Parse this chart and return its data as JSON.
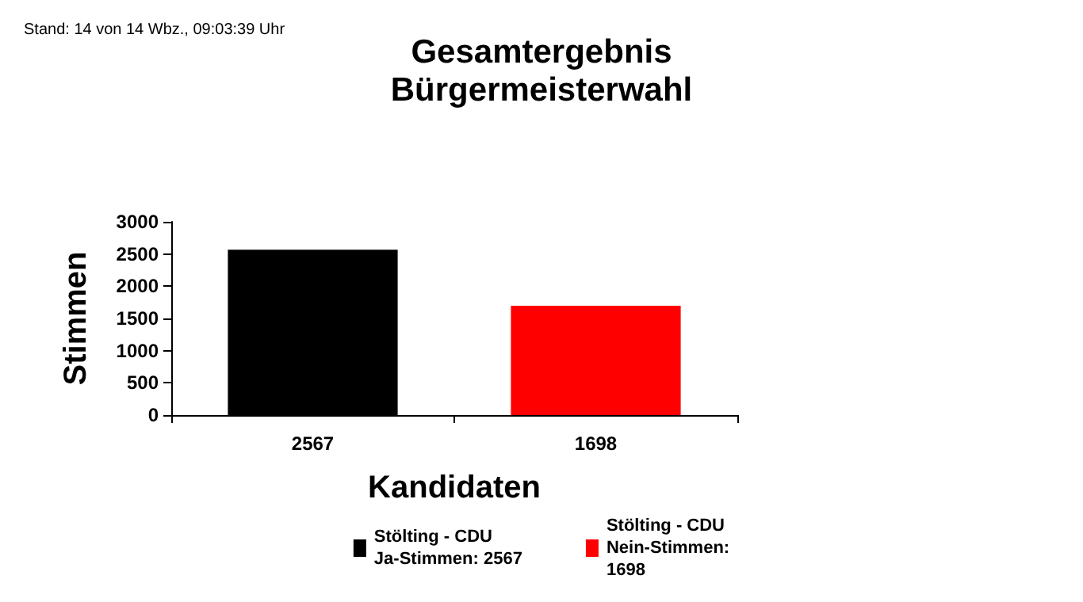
{
  "chart_data": {
    "type": "bar",
    "title": "Gesamtergebnis\nBürgermeisterwahl",
    "xlabel": "Kandidaten",
    "ylabel": "Stimmen",
    "annotations": [
      "Stand: 14 von 14 Wbz., 09:03:39 Uhr"
    ],
    "categories": [
      "2567",
      "1698"
    ],
    "stacked": true,
    "series": [
      {
        "name": "Stölting - CDU\nJa-Stimmen: 2567",
        "color": "#000000",
        "values": [
          2567,
          null
        ]
      },
      {
        "name": "Stölting - CDU\nNein-Stimmen:\n1698",
        "color": "#ff0000",
        "values": [
          null,
          1698
        ]
      }
    ],
    "ylim": [
      0,
      3000
    ],
    "yticks": [
      0,
      500,
      1000,
      1500,
      2000,
      2500,
      3000
    ],
    "legend": "bottom"
  }
}
